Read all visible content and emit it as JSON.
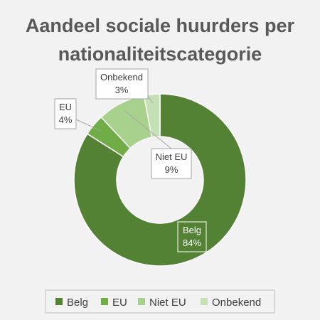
{
  "chart_data": {
    "type": "pie",
    "title_lines": [
      "Aandeel sociale huurders per",
      "nationaliteitscategorie"
    ],
    "categories": [
      "Belg",
      "EU",
      "Niet EU",
      "Onbekend"
    ],
    "values": [
      84,
      4,
      9,
      3
    ],
    "value_labels": [
      "84%",
      "4%",
      "9%",
      "3%"
    ],
    "colors": [
      "#548235",
      "#70ad47",
      "#a9d18e",
      "#c5e0b4"
    ],
    "donut": true,
    "legend_position": "bottom",
    "background": "#f2f2f2"
  }
}
